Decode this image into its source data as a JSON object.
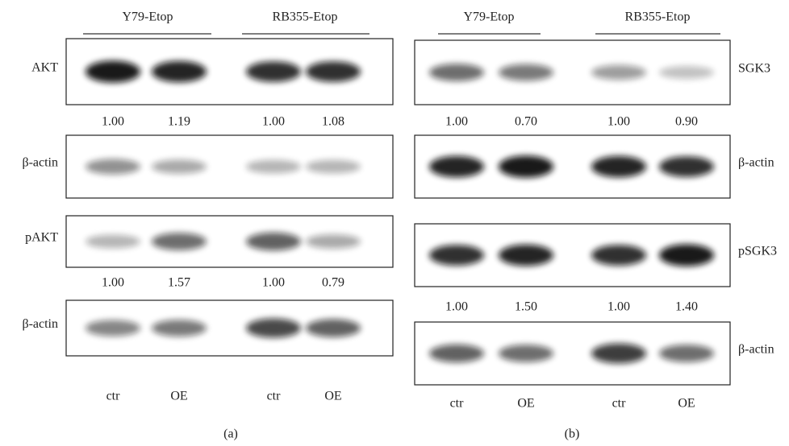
{
  "panels": [
    {
      "groups": [
        "Y79-Etop",
        "RB355-Etop"
      ],
      "blots": [
        {
          "label": "AKT",
          "values": [
            "1.00",
            "1.19",
            "1.00",
            "1.08"
          ]
        },
        {
          "label": "β-actin"
        },
        {
          "label": "pAKT",
          "values": [
            "1.00",
            "1.57",
            "1.00",
            "0.79"
          ]
        },
        {
          "label": "β-actin"
        }
      ],
      "lanes": [
        "ctr",
        "OE",
        "ctr",
        "OE"
      ],
      "caption": "(a)"
    },
    {
      "groups": [
        "Y79-Etop",
        "RB355-Etop"
      ],
      "blots": [
        {
          "label": "SGK3",
          "values": [
            "1.00",
            "0.70",
            "1.00",
            "0.90"
          ]
        },
        {
          "label": "β-actin"
        },
        {
          "label": "pSGK3",
          "values": [
            "1.00",
            "1.50",
            "1.00",
            "1.40"
          ]
        },
        {
          "label": "β-actin"
        }
      ],
      "lanes": [
        "ctr",
        "OE",
        "ctr",
        "OE"
      ],
      "caption": "(b)"
    }
  ]
}
